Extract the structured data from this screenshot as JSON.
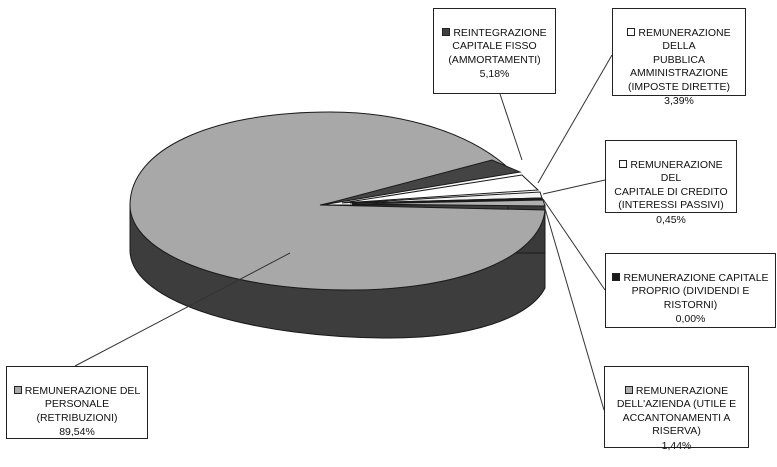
{
  "chart_data": {
    "type": "pie",
    "style": "3d-exploded",
    "slices": [
      {
        "label": "REMUNERAZIONE DEL PERSONALE (RETRIBUZIONI)",
        "value": 89.54,
        "value_label": "89,54%",
        "color": "#a8a8a8"
      },
      {
        "label": "REINTEGRAZIONE CAPITALE FISSO (AMMORTAMENTI)",
        "value": 5.18,
        "value_label": "5,18%",
        "color": "#404040"
      },
      {
        "label": "REMUNERAZIONE DELLA PUBBLICA AMMINISTRAZIONE (IMPOSTE DIRETTE)",
        "value": 3.39,
        "value_label": "3,39%",
        "color": "#ffffff"
      },
      {
        "label": "REMUNERAZIONE DEL CAPITALE DI CREDITO (INTERESSI PASSIVI)",
        "value": 0.45,
        "value_label": "0,45%",
        "color": "#ffffff"
      },
      {
        "label": "REMUNERAZIONE CAPITALE PROPRIO (DIVIDENDI E RISTORNI)",
        "value": 0.0,
        "value_label": "0,00%",
        "color": "#1a1a1a"
      },
      {
        "label": "REMUNERAZIONE DELL'AZIENDA (UTILE E ACCANTONAMENTI A RISERVA)",
        "value": 1.44,
        "value_label": "1,44%",
        "color": "#b0b0b0"
      }
    ]
  },
  "callouts": {
    "personale": {
      "text": "REMUNERAZIONE DEL\nPERSONALE\n(RETRIBUZIONI)",
      "pct": "89,54%"
    },
    "ammortamenti": {
      "text": "REINTEGRAZIONE\nCAPITALE FISSO\n(AMMORTAMENTI)",
      "pct": "5,18%"
    },
    "imposte": {
      "text": "REMUNERAZIONE DELLA\nPUBBLICA\nAMMINISTRAZIONE\n(IMPOSTE DIRETTE)",
      "pct": "3,39%"
    },
    "interessi": {
      "text": "REMUNERAZIONE DEL\nCAPITALE DI CREDITO\n(INTERESSI PASSIVI)",
      "pct": "0,45%"
    },
    "dividendi": {
      "text": "REMUNERAZIONE CAPITALE\nPROPRIO (DIVIDENDI E\nRISTORNI)",
      "pct": "0,00%"
    },
    "azienda": {
      "text": "REMUNERAZIONE\nDELL'AZIENDA (UTILE E\nACCANTONAMENTI A\nRISERVA)",
      "pct": "1,44%"
    }
  }
}
